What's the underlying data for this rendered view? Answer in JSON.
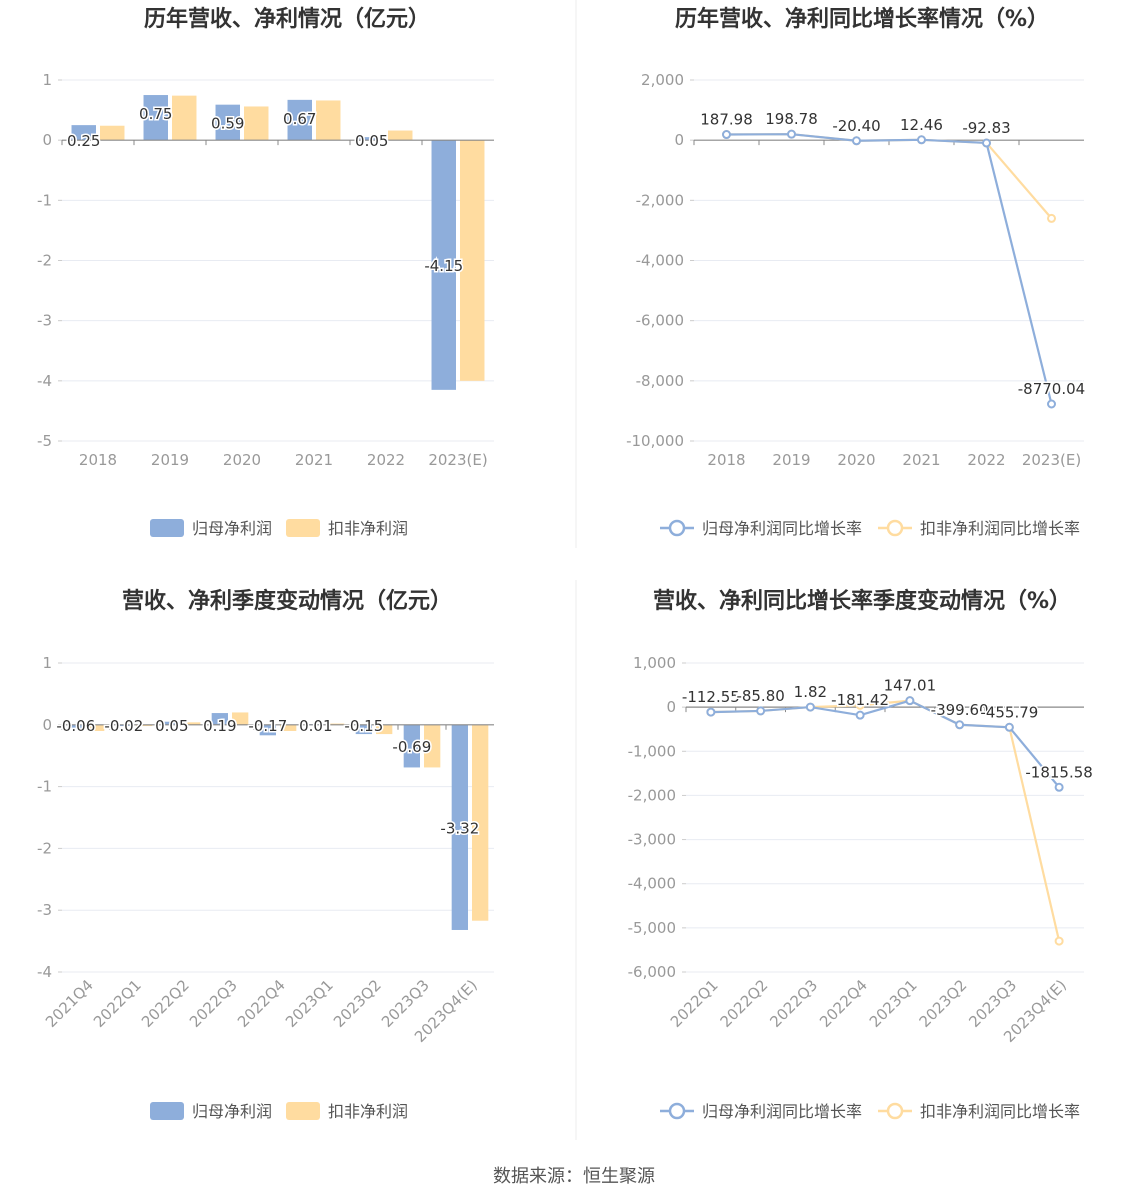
{
  "source_label": "数据来源：恒生聚源",
  "colors": {
    "blue": "#8eaedb",
    "yellow": "#ffdca0",
    "axis": "#888888",
    "grid": "#e8ebf2",
    "label": "#999999",
    "title": "#333333"
  },
  "chart_data": [
    {
      "type": "bar",
      "title": "历年营收、净利情况（亿元）",
      "categories": [
        "2018",
        "2019",
        "2020",
        "2021",
        "2022",
        "2023(E)"
      ],
      "series": [
        {
          "name": "归母净利润",
          "values": [
            0.25,
            0.75,
            0.59,
            0.67,
            0.05,
            -4.15
          ]
        },
        {
          "name": "扣非净利润",
          "values": [
            0.24,
            0.74,
            0.56,
            0.66,
            0.16,
            -4.0
          ]
        }
      ],
      "ylim": [
        -5,
        1
      ],
      "yticks": [
        "1",
        "0",
        "-1",
        "-2",
        "-3",
        "-4",
        "-5"
      ],
      "data_labels": [
        "0.25",
        "0.75",
        "0.59",
        "0.67",
        "0.05",
        "-4.15"
      ],
      "legend": "bottom",
      "grid": true
    },
    {
      "type": "line",
      "title": "历年营收、净利同比增长率情况（%）",
      "categories": [
        "2018",
        "2019",
        "2020",
        "2021",
        "2022",
        "2023(E)"
      ],
      "series": [
        {
          "name": "归母净利润同比增长率",
          "values": [
            187.98,
            198.78,
            -20.4,
            12.46,
            -92.83,
            -8770.04
          ]
        },
        {
          "name": "扣非净利润同比增长率",
          "values": [
            187.98,
            198.78,
            -20.4,
            12.46,
            -92.83,
            -2600
          ]
        }
      ],
      "ylim": [
        -10000,
        2000
      ],
      "yticks": [
        "2,000",
        "0",
        "-2,000",
        "-4,000",
        "-6,000",
        "-8,000",
        "-10,000"
      ],
      "data_labels": [
        "187.98",
        "198.78",
        "-20.40",
        "12.46",
        "-92.83",
        "-8770.04"
      ],
      "legend": "bottom",
      "grid": true
    },
    {
      "type": "bar",
      "title": "营收、净利季度变动情况（亿元）",
      "categories": [
        "2021Q4",
        "2022Q1",
        "2022Q2",
        "2022Q3",
        "2022Q4",
        "2023Q1",
        "2023Q2",
        "2023Q3",
        "2023Q4(E)"
      ],
      "series": [
        {
          "name": "归母净利润",
          "values": [
            -0.06,
            -0.02,
            0.05,
            0.19,
            -0.17,
            0.01,
            -0.15,
            -0.69,
            -3.32
          ]
        },
        {
          "name": "扣非净利润",
          "values": [
            -0.1,
            -0.02,
            0.04,
            0.2,
            -0.1,
            0.02,
            -0.15,
            -0.69,
            -3.17
          ]
        }
      ],
      "ylim": [
        -4,
        1
      ],
      "yticks": [
        "1",
        "0",
        "-1",
        "-2",
        "-3",
        "-4"
      ],
      "data_labels": [
        "-0.06",
        "-0.02",
        "0.05",
        "0.19",
        "-0.17",
        "0.01",
        "-0.15",
        "-0.69",
        "-3.32"
      ],
      "legend": "bottom",
      "grid": true
    },
    {
      "type": "line",
      "title": "营收、净利同比增长率季度变动情况（%）",
      "categories": [
        "2022Q1",
        "2022Q2",
        "2022Q3",
        "2022Q4",
        "2023Q1",
        "2023Q2",
        "2023Q3",
        "2023Q4(E)"
      ],
      "series": [
        {
          "name": "归母净利润同比增长率",
          "values": [
            -112.55,
            -85.8,
            1.82,
            -181.42,
            147.01,
            -399.6,
            -455.79,
            -1815.58
          ]
        },
        {
          "name": "扣非净利润同比增长率",
          "values": [
            -112.55,
            -85.8,
            1.82,
            40,
            147.01,
            -399.6,
            -455.79,
            -5300
          ]
        }
      ],
      "ylim": [
        -6000,
        1000
      ],
      "yticks": [
        "1,000",
        "0",
        "-1,000",
        "-2,000",
        "-3,000",
        "-4,000",
        "-5,000",
        "-6,000"
      ],
      "data_labels": [
        "-112.55",
        "-85.80",
        "1.82",
        "-181.42",
        "147.01",
        "-399.60",
        "-455.79",
        "-1815.58"
      ],
      "legend": "bottom",
      "grid": true
    }
  ]
}
